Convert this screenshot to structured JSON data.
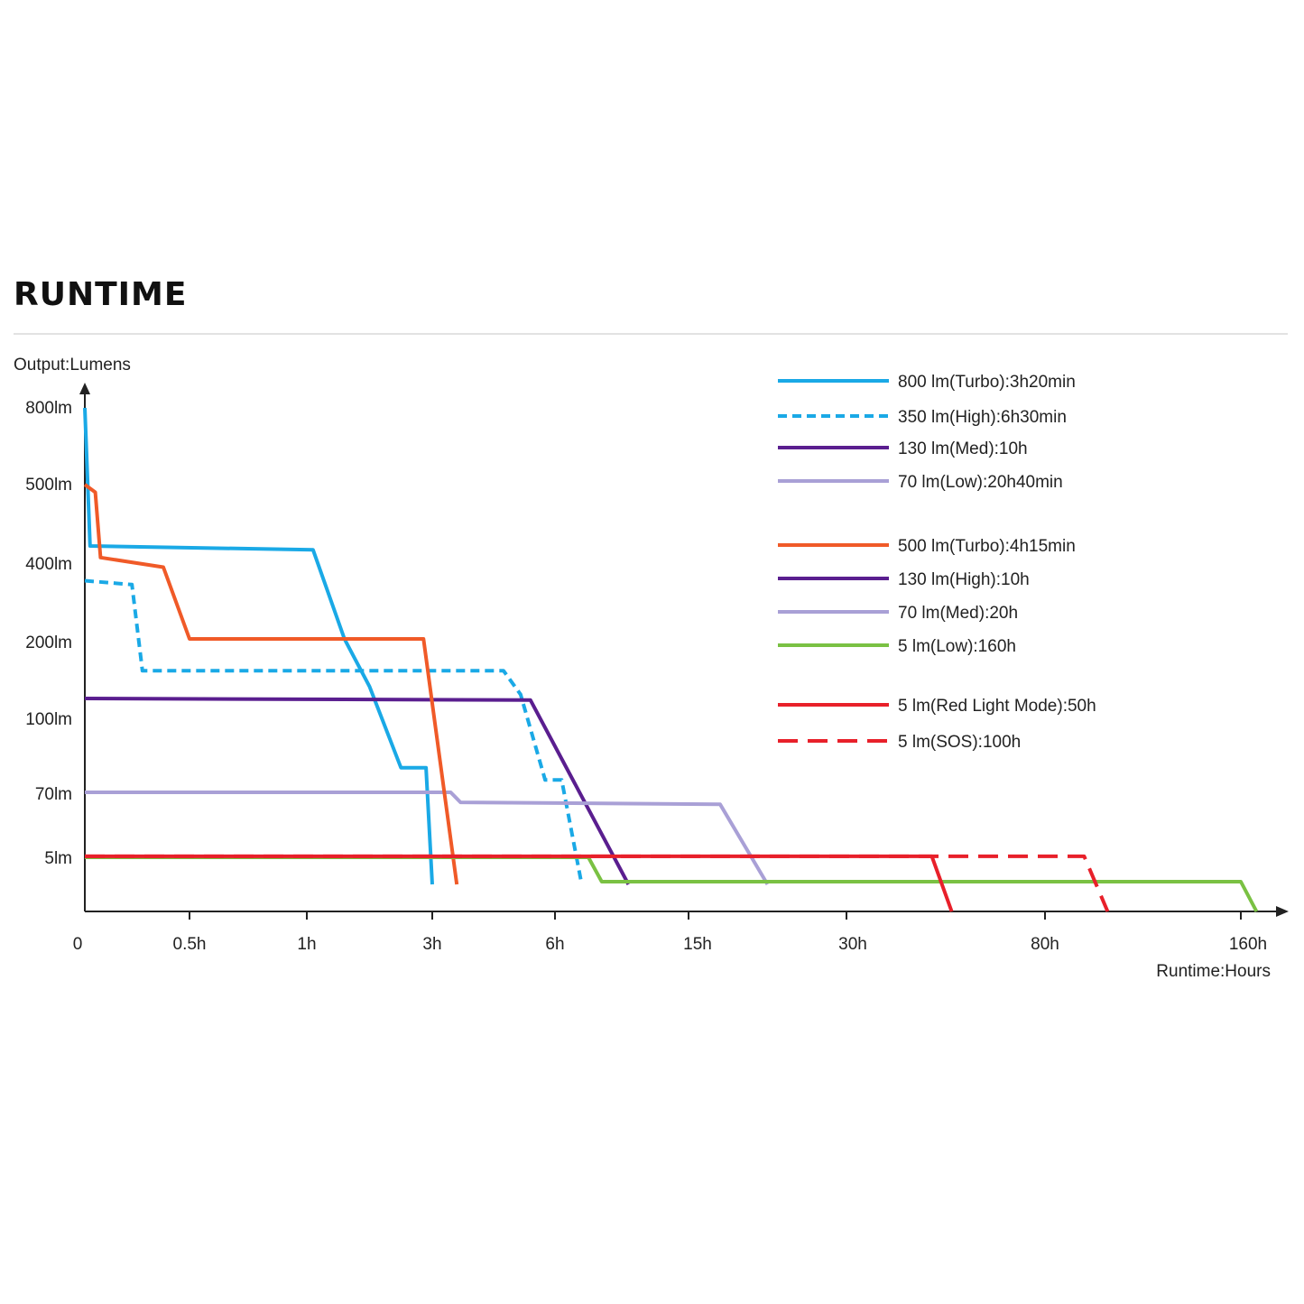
{
  "page": {
    "title": "RUNTIME"
  },
  "chart_data": {
    "type": "line",
    "title": "RUNTIME",
    "ylabel": "Output:Lumens",
    "xlabel": "Runtime:Hours",
    "x_ticks": [
      "0",
      "0.5h",
      "1h",
      "3h",
      "6h",
      "15h",
      "30h",
      "80h",
      "160h"
    ],
    "y_ticks": [
      "800lm",
      "500lm",
      "400lm",
      "200lm",
      "100lm",
      "70lm",
      "5lm"
    ],
    "x_scale": "non-linear (ticks evenly labelled: 0, 0.5h, 1h, 3h, 6h, 15h, 30h, 80h, 160h)",
    "y_scale": "non-linear (ticks labelled 5lm, 70lm, 100lm, 200lm, 400lm, 500lm, 800lm)",
    "legend_position": "top-right",
    "legend_groups": [
      [
        {
          "label": "800 lm(Turbo):3h20min",
          "color": "#1aa9e6",
          "dash": "solid"
        },
        {
          "label": "350 lm(High):6h30min",
          "color": "#1aa9e6",
          "dash": "dotted"
        },
        {
          "label": "130 lm(Med):10h",
          "color": "#5a1e8f",
          "dash": "solid"
        },
        {
          "label": "70 lm(Low):20h40min",
          "color": "#a9a0d6",
          "dash": "solid"
        }
      ],
      [
        {
          "label": "500 lm(Turbo):4h15min",
          "color": "#f05a28",
          "dash": "solid"
        },
        {
          "label": "130 lm(High):10h",
          "color": "#5a1e8f",
          "dash": "solid"
        },
        {
          "label": "70 lm(Med):20h",
          "color": "#a9a0d6",
          "dash": "solid"
        },
        {
          "label": "5 lm(Low):160h",
          "color": "#7ac143",
          "dash": "solid"
        }
      ],
      [
        {
          "label": "5 lm(Red Light Mode):50h",
          "color": "#e8202a",
          "dash": "solid"
        },
        {
          "label": "5 lm(SOS):100h",
          "color": "#e8202a",
          "dash": "dashed"
        }
      ]
    ],
    "series": [
      {
        "name": "800 lm(Turbo):3h20min",
        "color": "#1aa9e6",
        "dash": "solid",
        "x": [
          0,
          0.05,
          2.05,
          2.3,
          2.5,
          2.75,
          2.95,
          3.0
        ],
        "y": [
          800,
          420,
          415,
          200,
          140,
          80,
          80,
          0
        ]
      },
      {
        "name": "350 lm(High):6h30min",
        "color": "#1aa9e6",
        "dash": "dotted",
        "x": [
          0,
          0.45,
          0.55,
          3.58,
          3.72,
          3.92,
          4.05,
          4.2
        ],
        "y": [
          350,
          340,
          160,
          160,
          130,
          75,
          75,
          0
        ]
      },
      {
        "name": "130 lm(Med):10h",
        "color": "#5a1e8f",
        "dash": "solid",
        "x": [
          0,
          3.8,
          4.55
        ],
        "y": [
          125,
          123,
          0
        ]
      },
      {
        "name": "70 lm(Low):20h40min",
        "color": "#a9a0d6",
        "dash": "solid",
        "x": [
          0,
          3.15,
          3.23,
          5.2,
          5.5
        ],
        "y": [
          70,
          70,
          60,
          58,
          0
        ]
      },
      {
        "name": "500 lm(Turbo):4h15min",
        "color": "#f05a28",
        "dash": "solid",
        "x": [
          0,
          0.1,
          0.15,
          0.75,
          1.0,
          2.93,
          3.2
        ],
        "y": [
          500,
          490,
          405,
          385,
          200,
          200,
          0
        ]
      },
      {
        "name": "5 lm(Low):160h",
        "color": "#7ac143",
        "dash": "solid",
        "x": [
          0,
          4.25,
          4.35,
          8.0,
          8.08
        ],
        "y": [
          5,
          5,
          0.5,
          0.5,
          -5
        ]
      },
      {
        "name": "5 lm(Red Light Mode):50h",
        "color": "#e8202a",
        "dash": "solid",
        "x": [
          0,
          6.43,
          6.53
        ],
        "y": [
          6,
          6,
          -5
        ]
      },
      {
        "name": "5 lm(SOS):100h",
        "color": "#e8202a",
        "dash": "dashed",
        "x": [
          0,
          7.2,
          7.32
        ],
        "y": [
          6,
          6,
          -5
        ]
      }
    ]
  }
}
